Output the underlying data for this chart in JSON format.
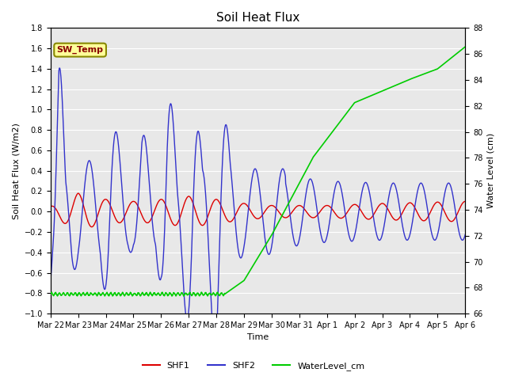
{
  "title": "Soil Heat Flux",
  "ylabel_left": "Soil Heat Flux (W/m2)",
  "ylabel_right": "Water Level (cm)",
  "xlabel": "Time",
  "ylim_left": [
    -1.0,
    1.8
  ],
  "ylim_right": [
    66,
    88
  ],
  "yticks_left": [
    -1.0,
    -0.8,
    -0.6,
    -0.4,
    -0.2,
    0.0,
    0.2,
    0.4,
    0.6,
    0.8,
    1.0,
    1.2,
    1.4,
    1.6,
    1.8
  ],
  "yticks_right": [
    66,
    68,
    70,
    72,
    74,
    76,
    78,
    80,
    82,
    84,
    86,
    88
  ],
  "bg_color": "#e8e8e8",
  "grid_color": "#ffffff",
  "shf1_color": "#dd0000",
  "shf2_color": "#3333cc",
  "water_color": "#00cc00",
  "annotation_text": "SW_Temp",
  "annotation_bg": "#ffff99",
  "annotation_border": "#888800",
  "annotation_text_color": "#880000",
  "tick_labels": [
    "Mar 22",
    "Mar 23",
    "Mar 24",
    "Mar 25",
    "Mar 26",
    "Mar 27",
    "Mar 28",
    "Mar 29",
    "Mar 30",
    "Mar 31",
    "Apr 1",
    "Apr 2",
    "Apr 3",
    "Apr 4",
    "Apr 5",
    "Apr 6"
  ],
  "figsize": [
    6.4,
    4.8
  ],
  "dpi": 100
}
